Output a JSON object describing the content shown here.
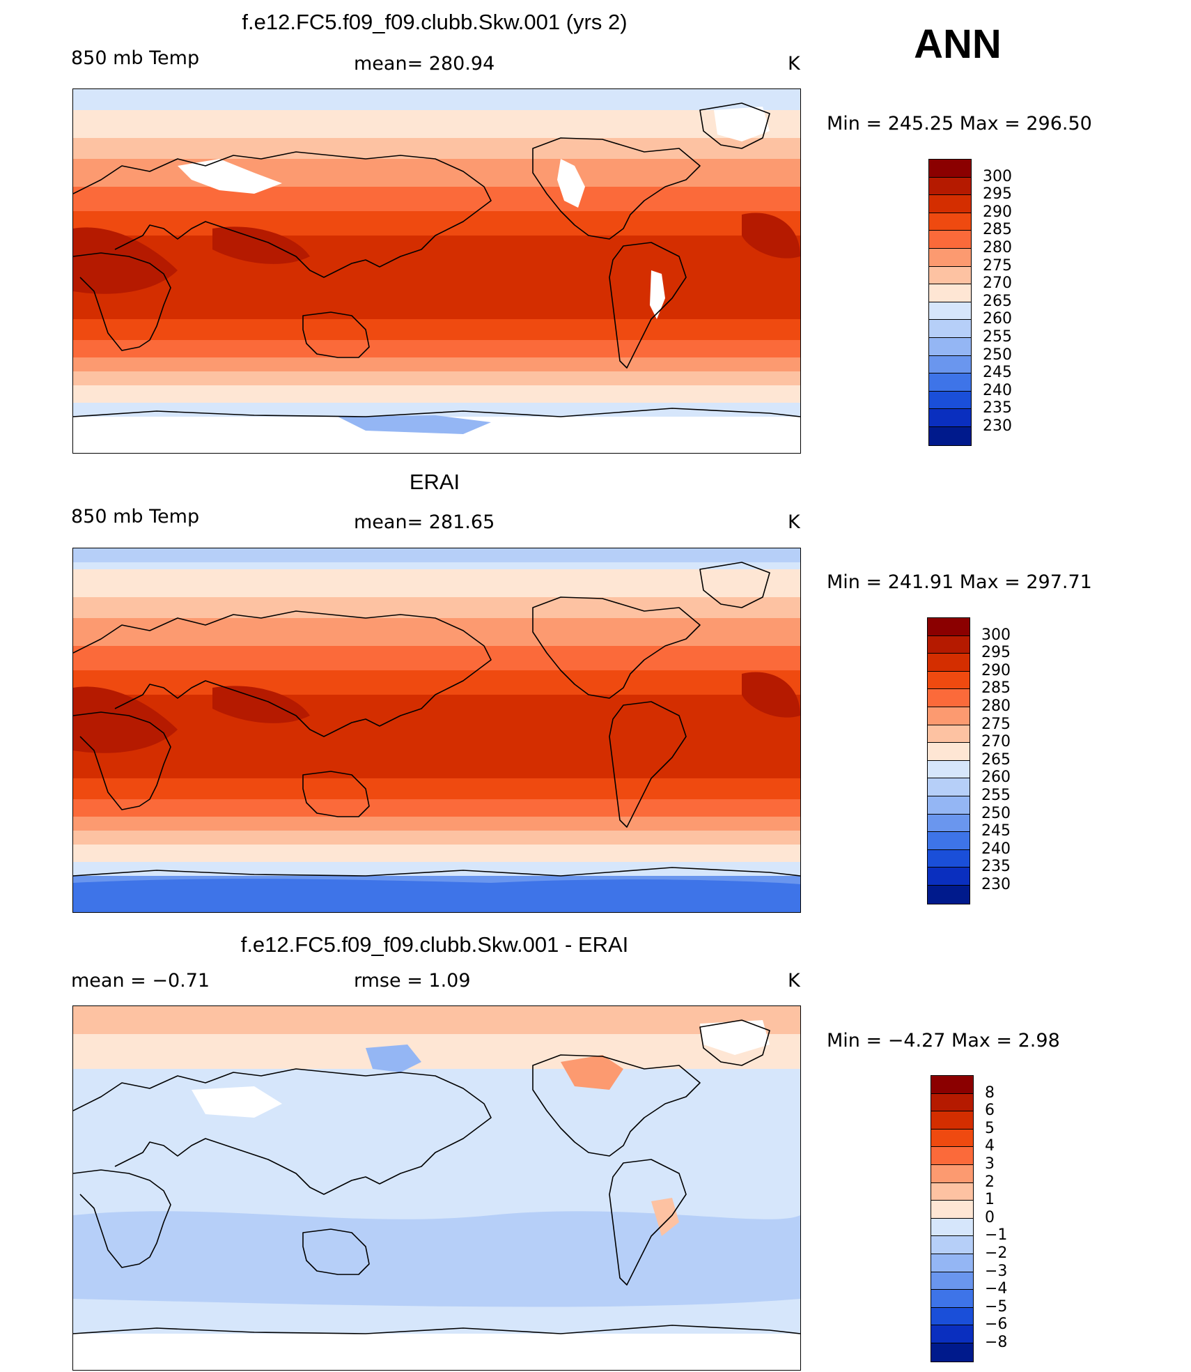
{
  "season": "ANN",
  "panels": [
    {
      "title": "f.e12.FC5.f09_f09.clubb.Skw.001 (yrs 2)",
      "left_label": "850 mb Temp",
      "center_label": "mean=  280.94",
      "units": "K",
      "minmax": "Min  =  245.25  Max  =  296.50",
      "kind": "model"
    },
    {
      "title": "ERAI",
      "left_label": "850 mb Temp",
      "center_label": "mean=  281.65",
      "units": "K",
      "minmax": "Min  =  241.91  Max  =  297.71",
      "kind": "obs"
    },
    {
      "title": "f.e12.FC5.f09_f09.clubb.Skw.001 - ERAI",
      "left_label": "mean  =    −0.71",
      "center_label": "rmse  =     1.09",
      "units": "K",
      "minmax": "Min  =    −4.27  Max  =      2.98",
      "kind": "diff"
    }
  ],
  "colorbars": {
    "temp": {
      "ticks": [
        "300",
        "295",
        "290",
        "285",
        "280",
        "275",
        "270",
        "265",
        "260",
        "255",
        "250",
        "245",
        "240",
        "235",
        "230"
      ],
      "colors": [
        "#8b0000",
        "#b51a00",
        "#d42e00",
        "#ef4a10",
        "#fb6a3a",
        "#fc9a70",
        "#fdc2a2",
        "#fee6d4",
        "#d6e6fb",
        "#b6cff8",
        "#94b6f4",
        "#6a96ee",
        "#3e74e8",
        "#1a4fd9",
        "#0a2fbf",
        "#001a8c"
      ]
    },
    "diff": {
      "ticks": [
        "8",
        "6",
        "5",
        "4",
        "3",
        "2",
        "1",
        "0",
        "−1",
        "−2",
        "−3",
        "−4",
        "−5",
        "−6",
        "−8"
      ],
      "colors": [
        "#8b0000",
        "#b51a00",
        "#d42e00",
        "#ef4a10",
        "#fb6a3a",
        "#fc9a70",
        "#fdc2a2",
        "#fee6d4",
        "#d6e6fb",
        "#b6cff8",
        "#94b6f4",
        "#6a96ee",
        "#3e74e8",
        "#1a4fd9",
        "#0a2fbf",
        "#001a8c"
      ]
    }
  }
}
